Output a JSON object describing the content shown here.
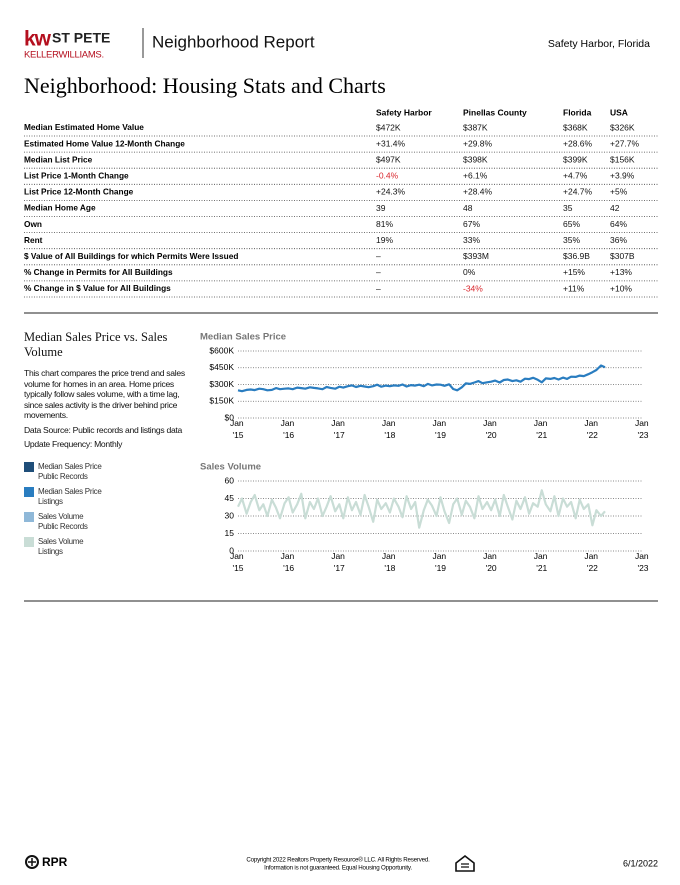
{
  "header": {
    "logo_kw": "kw",
    "logo_city": "ST PETE",
    "logo_brand": "KELLERWILLIAMS.",
    "report": "Neighborhood Report",
    "location": "Safety Harbor, Florida"
  },
  "title": "Neighborhood: Housing Stats and Charts",
  "table": {
    "columns": [
      "Safety Harbor",
      "Pinellas County",
      "Florida",
      "USA"
    ],
    "negative_color": "#d9262c",
    "rows": [
      {
        "label": "Median Estimated Home Value",
        "values": [
          "$472K",
          "$387K",
          "$368K",
          "$326K"
        ]
      },
      {
        "label": "Estimated Home Value 12-Month Change",
        "values": [
          "+31.4%",
          "+29.8%",
          "+28.6%",
          "+27.7%"
        ]
      },
      {
        "label": "Median List Price",
        "values": [
          "$497K",
          "$398K",
          "$399K",
          "$156K"
        ]
      },
      {
        "label": "List Price 1-Month Change",
        "values": [
          "-0.4%",
          "+6.1%",
          "+4.7%",
          "+3.9%"
        ]
      },
      {
        "label": "List Price 12-Month Change",
        "values": [
          "+24.3%",
          "+28.4%",
          "+24.7%",
          "+5%"
        ]
      },
      {
        "label": "Median Home Age",
        "values": [
          "39",
          "48",
          "35",
          "42"
        ]
      },
      {
        "label": "Own",
        "values": [
          "81%",
          "67%",
          "65%",
          "64%"
        ]
      },
      {
        "label": "Rent",
        "values": [
          "19%",
          "33%",
          "35%",
          "36%"
        ]
      },
      {
        "label": "$ Value of All Buildings for which Permits Were Issued",
        "values": [
          "–",
          "$393M",
          "$36.9B",
          "$307B"
        ]
      },
      {
        "label": "% Change in Permits for All Buildings",
        "values": [
          "–",
          "0%",
          "+15%",
          "+13%"
        ]
      },
      {
        "label": "% Change in $ Value for All Buildings",
        "values": [
          "–",
          "-34%",
          "+11%",
          "+10%"
        ]
      }
    ]
  },
  "panel": {
    "title": "Median Sales Price vs. Sales Volume",
    "paragraphs": [
      "This chart compares the price trend and sales volume for homes in an area. Home prices typically follow sales volume, with a time lag, since sales activity is the driver behind price movements.",
      "Data Source: Public records and listings data",
      "Update Frequency: Monthly"
    ],
    "legend": [
      {
        "lines": [
          "Median Sales Price",
          "Public Records"
        ],
        "color": "#1f4e79"
      },
      {
        "lines": [
          "Median Sales Price",
          "Listings"
        ],
        "color": "#2a7dc0"
      },
      {
        "lines": [
          "Sales Volume",
          "Public Records"
        ],
        "color": "#8fb8d8"
      },
      {
        "lines": [
          "Sales Volume",
          "Listings"
        ],
        "color": "#c9ddd6"
      }
    ]
  },
  "chart_data": [
    {
      "type": "line",
      "title": "Median Sales Price",
      "grid": true,
      "x": [
        2015,
        2015.08,
        2015.17,
        2015.25,
        2015.33,
        2015.42,
        2015.5,
        2015.58,
        2015.67,
        2015.75,
        2015.83,
        2015.92,
        2016,
        2016.08,
        2016.17,
        2016.25,
        2016.33,
        2016.42,
        2016.5,
        2016.58,
        2016.67,
        2016.75,
        2016.83,
        2016.92,
        2017,
        2017.08,
        2017.17,
        2017.25,
        2017.33,
        2017.42,
        2017.5,
        2017.58,
        2017.67,
        2017.75,
        2017.83,
        2017.92,
        2018,
        2018.08,
        2018.17,
        2018.25,
        2018.33,
        2018.42,
        2018.5,
        2018.58,
        2018.67,
        2018.75,
        2018.83,
        2018.92,
        2019,
        2019.08,
        2019.17,
        2019.25,
        2019.33,
        2019.42,
        2019.5,
        2019.58,
        2019.67,
        2019.75,
        2019.83,
        2019.92,
        2020,
        2020.08,
        2020.17,
        2020.25,
        2020.33,
        2020.42,
        2020.5,
        2020.58,
        2020.67,
        2020.75,
        2020.83,
        2020.92,
        2021,
        2021.08,
        2021.17,
        2021.25,
        2021.33,
        2021.42,
        2021.5,
        2021.58,
        2021.67,
        2021.75,
        2021.83,
        2021.92,
        2022,
        2022.08,
        2022.17,
        2022.25
      ],
      "xlim": [
        2015,
        2023
      ],
      "xticks": [
        {
          "value": 2015,
          "label": "Jan '15"
        },
        {
          "value": 2016,
          "label": "Jan '16"
        },
        {
          "value": 2017,
          "label": "Jan '17"
        },
        {
          "value": 2018,
          "label": "Jan '18"
        },
        {
          "value": 2019,
          "label": "Jan '19"
        },
        {
          "value": 2020,
          "label": "Jan '20"
        },
        {
          "value": 2021,
          "label": "Jan '21"
        },
        {
          "value": 2022,
          "label": "Jan '22"
        },
        {
          "value": 2023,
          "label": "Jan '23"
        }
      ],
      "ylim": [
        0,
        600000
      ],
      "yticks": [
        {
          "value": 0,
          "label": "$0"
        },
        {
          "value": 150000,
          "label": "$150K"
        },
        {
          "value": 300000,
          "label": "$300K"
        },
        {
          "value": 450000,
          "label": "$450K"
        },
        {
          "value": 600000,
          "label": "$600K"
        }
      ],
      "series": [
        {
          "color": "#2a7dc0",
          "values": [
            248000,
            240000,
            252000,
            255000,
            250000,
            262000,
            258000,
            248000,
            252000,
            268000,
            258000,
            262000,
            265000,
            258000,
            272000,
            268000,
            262000,
            275000,
            270000,
            265000,
            258000,
            278000,
            270000,
            262000,
            280000,
            272000,
            285000,
            292000,
            278000,
            288000,
            282000,
            276000,
            285000,
            298000,
            280000,
            290000,
            285000,
            292000,
            288000,
            300000,
            282000,
            295000,
            290000,
            298000,
            285000,
            305000,
            292000,
            300000,
            298000,
            288000,
            302000,
            260000,
            248000,
            275000,
            310000,
            305000,
            318000,
            330000,
            312000,
            320000,
            325000,
            335000,
            318000,
            340000,
            345000,
            330000,
            338000,
            325000,
            352000,
            348000,
            360000,
            342000,
            320000,
            355000,
            350000,
            358000,
            345000,
            362000,
            350000,
            370000,
            368000,
            380000,
            375000,
            392000,
            410000,
            430000,
            470000,
            455000
          ]
        }
      ]
    },
    {
      "type": "line",
      "title": "Sales Volume",
      "grid": true,
      "x": [
        2015,
        2015.08,
        2015.17,
        2015.25,
        2015.33,
        2015.42,
        2015.5,
        2015.58,
        2015.67,
        2015.75,
        2015.83,
        2015.92,
        2016,
        2016.08,
        2016.17,
        2016.25,
        2016.33,
        2016.42,
        2016.5,
        2016.58,
        2016.67,
        2016.75,
        2016.83,
        2016.92,
        2017,
        2017.08,
        2017.17,
        2017.25,
        2017.33,
        2017.42,
        2017.5,
        2017.58,
        2017.67,
        2017.75,
        2017.83,
        2017.92,
        2018,
        2018.08,
        2018.17,
        2018.25,
        2018.33,
        2018.42,
        2018.5,
        2018.58,
        2018.67,
        2018.75,
        2018.83,
        2018.92,
        2019,
        2019.08,
        2019.17,
        2019.25,
        2019.33,
        2019.42,
        2019.5,
        2019.58,
        2019.67,
        2019.75,
        2019.83,
        2019.92,
        2020,
        2020.08,
        2020.17,
        2020.25,
        2020.33,
        2020.42,
        2020.5,
        2020.58,
        2020.67,
        2020.75,
        2020.83,
        2020.92,
        2021,
        2021.08,
        2021.17,
        2021.25,
        2021.33,
        2021.42,
        2021.5,
        2021.58,
        2021.67,
        2021.75,
        2021.83,
        2021.92,
        2022,
        2022.08,
        2022.17,
        2022.25
      ],
      "xlim": [
        2015,
        2023
      ],
      "xticks": [
        {
          "value": 2015,
          "label": "Jan '15"
        },
        {
          "value": 2016,
          "label": "Jan '16"
        },
        {
          "value": 2017,
          "label": "Jan '17"
        },
        {
          "value": 2018,
          "label": "Jan '18"
        },
        {
          "value": 2019,
          "label": "Jan '19"
        },
        {
          "value": 2020,
          "label": "Jan '20"
        },
        {
          "value": 2021,
          "label": "Jan '21"
        },
        {
          "value": 2022,
          "label": "Jan '22"
        },
        {
          "value": 2023,
          "label": "Jan '23"
        }
      ],
      "ylim": [
        0,
        60
      ],
      "yticks": [
        0,
        15,
        30,
        45,
        60
      ],
      "series": [
        {
          "color": "#c9ddd6",
          "values": [
            38,
            45,
            32,
            42,
            48,
            35,
            40,
            30,
            44,
            37,
            28,
            41,
            46,
            33,
            40,
            49,
            28,
            42,
            36,
            45,
            30,
            38,
            47,
            34,
            40,
            28,
            46,
            35,
            42,
            31,
            48,
            38,
            25,
            44,
            36,
            41,
            33,
            45,
            38,
            29,
            47,
            36,
            42,
            20,
            35,
            44,
            39,
            30,
            46,
            34,
            24,
            40,
            45,
            31,
            43,
            38,
            28,
            47,
            36,
            42,
            35,
            44,
            30,
            48,
            38,
            27,
            43,
            36,
            46,
            32,
            41,
            38,
            52,
            40,
            34,
            47,
            30,
            45,
            38,
            42,
            28,
            44,
            36,
            40,
            22,
            35,
            30,
            34
          ]
        }
      ]
    }
  ],
  "footer": {
    "logo": "RPR",
    "copyright": [
      "Copyright 2022 Realtors Property Resource® LLC. All Rights Reserved.",
      "Information is not guaranteed. Equal Housing Opportunity."
    ],
    "date": "6/1/2022"
  }
}
